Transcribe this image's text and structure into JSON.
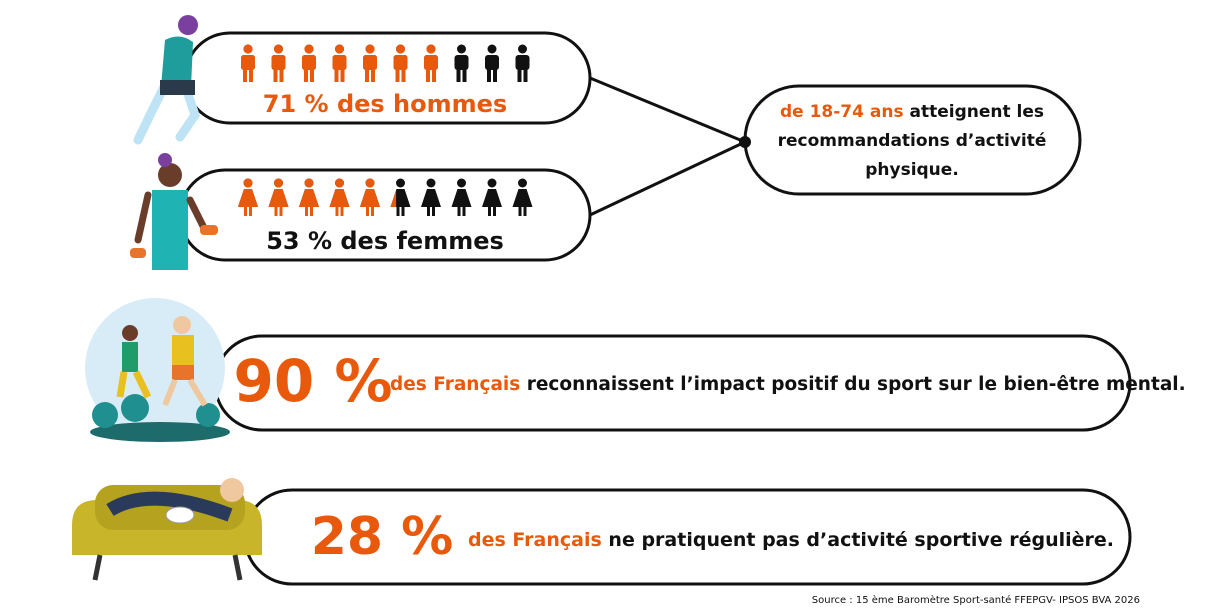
{
  "men": {
    "value": 71,
    "label": "71 % des hommes"
  },
  "women": {
    "value": 53,
    "label": "53 % des femmes"
  },
  "statement": {
    "lines": [
      [
        {
          "text": "de 18-74 ans",
          "highlight": true
        },
        {
          "text": " atteignent les",
          "highlight": false
        }
      ],
      [
        {
          "text": "recommandations d’activité",
          "highlight": false
        }
      ],
      [
        {
          "text": "physique.",
          "highlight": false
        }
      ]
    ]
  },
  "mental": {
    "figure": "90 %",
    "parts": [
      {
        "text": "des Français",
        "highlight": true
      },
      {
        "text": " reconnaissent l’impact positif du sport sur le bien-être mental.",
        "highlight": false
      }
    ]
  },
  "inactive": {
    "figure": "28 %",
    "parts": [
      {
        "text": "des Français",
        "highlight": true
      },
      {
        "text": " ne pratiquent pas d’activité sportive régulière.",
        "highlight": false
      }
    ]
  },
  "source": "Source : 15 ème Baromètre Sport-santé FFEPGV- IPSOS BVA 2026"
}
